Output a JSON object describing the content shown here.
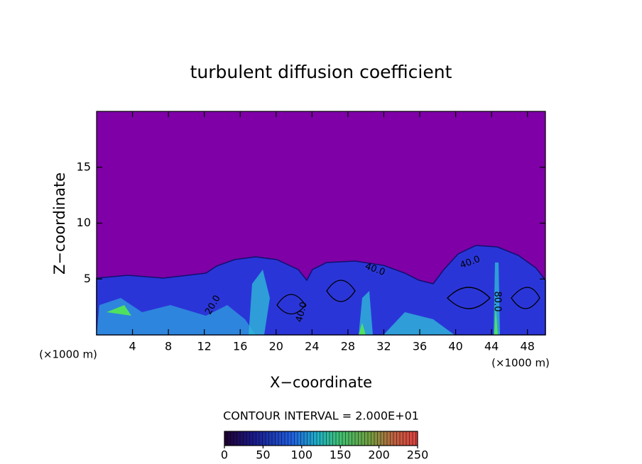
{
  "chart_data": {
    "type": "contour",
    "title": "turbulent diffusion coefficient",
    "xlabel": "X−coordinate",
    "ylabel": "Z−coordinate",
    "x_unit": "(×1000 m)",
    "x_unit_right": "(×1000 m)",
    "xlim": [
      0,
      50
    ],
    "xticks": [
      4,
      8,
      12,
      16,
      20,
      24,
      28,
      32,
      36,
      40,
      44,
      48
    ],
    "ylim": [
      0,
      20
    ],
    "yticks": [
      5,
      10,
      15
    ],
    "contour_labels": [
      "20.0",
      "40.0",
      "40.0",
      "40.0",
      "80.0"
    ],
    "colorbar": {
      "label": "CONTOUR INTERVAL = 2.000E+01",
      "lim": [
        0,
        250
      ],
      "ticks": [
        0,
        50,
        100,
        150,
        200,
        250
      ]
    }
  }
}
